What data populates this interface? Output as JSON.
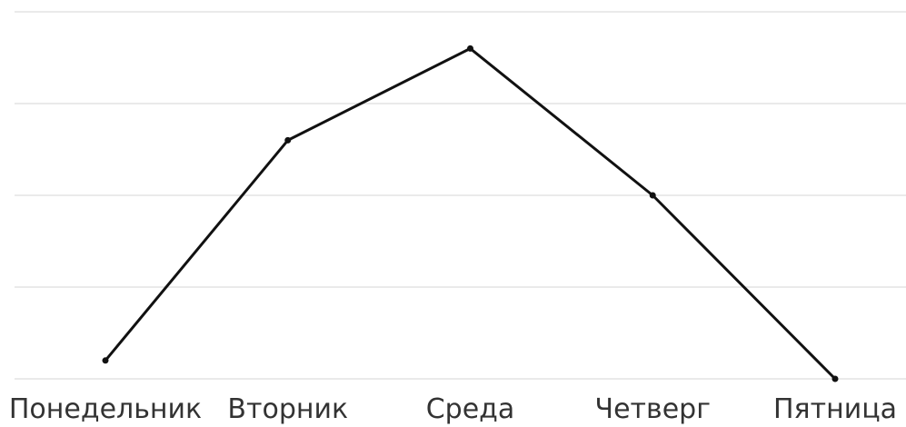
{
  "chart_data": {
    "type": "line",
    "title": "",
    "xlabel": "",
    "ylabel": "",
    "categories": [
      "Понедельник",
      "Вторник",
      "Среда",
      "Четверг",
      "Пятница"
    ],
    "series": [
      {
        "values": [
          0.2,
          2.6,
          3.6,
          2.0,
          0.0
        ],
        "color": "#111111"
      }
    ],
    "ylim": [
      0,
      4
    ],
    "yticks_shown": false,
    "grid": true,
    "grid_color": "#e3e3e3",
    "legend": "none"
  }
}
